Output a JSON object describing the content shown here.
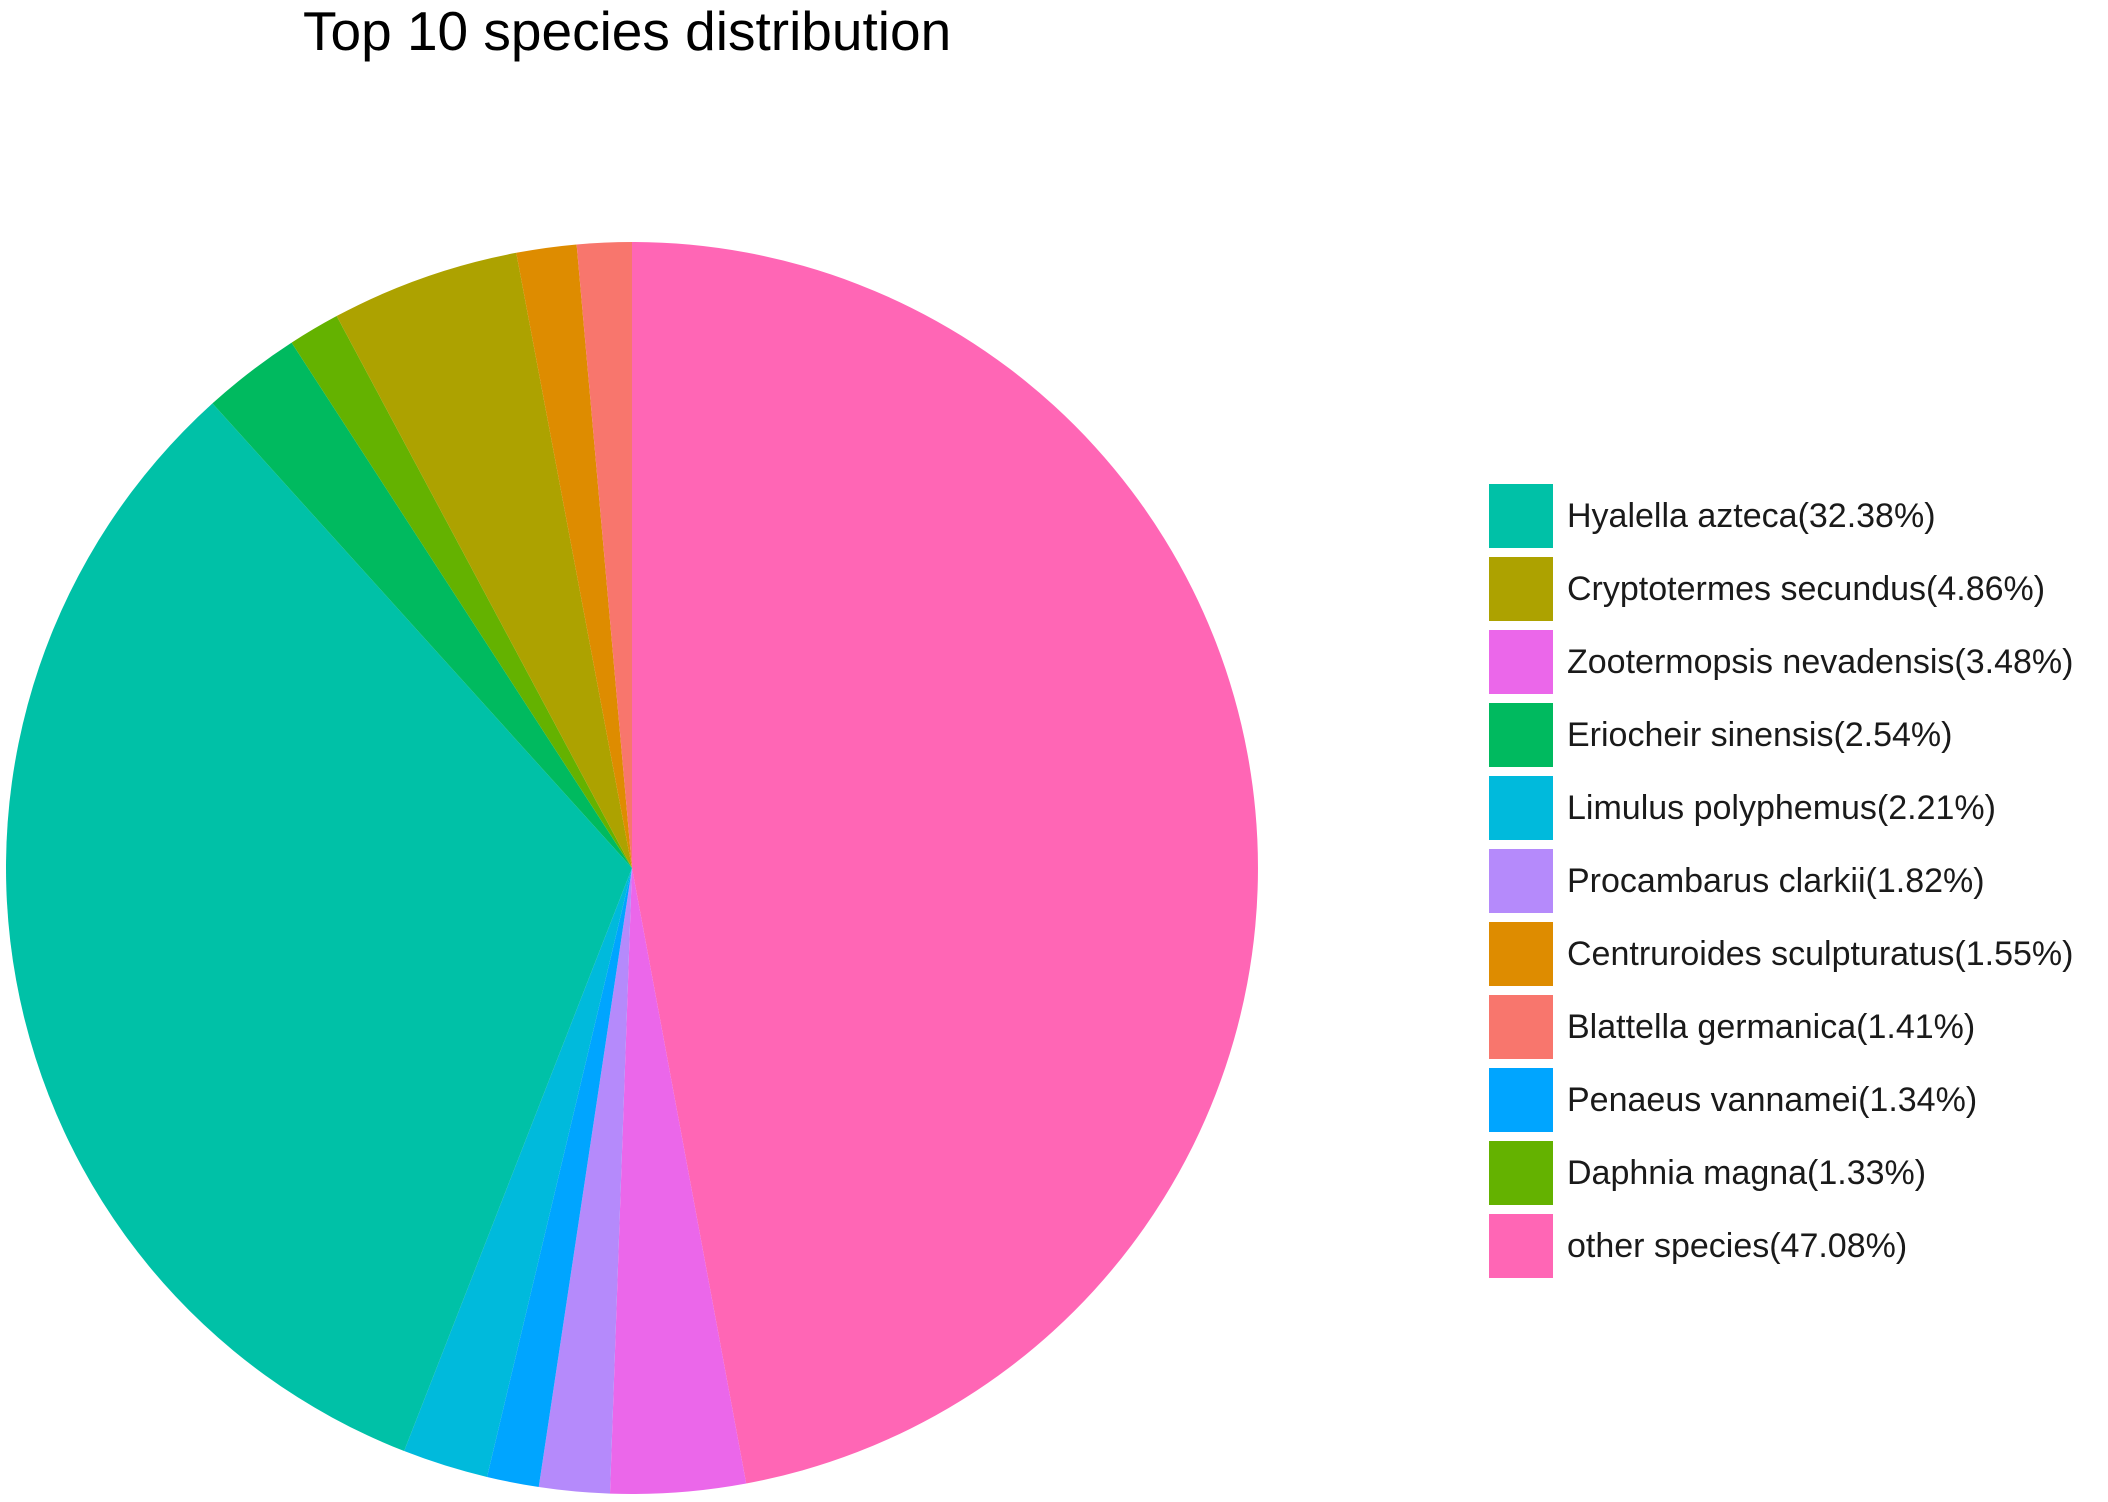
{
  "chart_data": {
    "type": "pie",
    "title": "Top 10 species distribution",
    "slices": [
      {
        "label": "Hyalella azteca(32.38%)",
        "value": 32.38,
        "color": "#00C1A7"
      },
      {
        "label": "Cryptotermes secundus(4.86%)",
        "value": 4.86,
        "color": "#ADA200"
      },
      {
        "label": "Zootermopsis nevadensis(3.48%)",
        "value": 3.48,
        "color": "#EB67EA"
      },
      {
        "label": "Eriocheir sinensis(2.54%)",
        "value": 2.54,
        "color": "#00BA5F"
      },
      {
        "label": "Limulus polyphemus(2.21%)",
        "value": 2.21,
        "color": "#00BADC"
      },
      {
        "label": "Procambarus clarkii(1.82%)",
        "value": 1.82,
        "color": "#B58AFB"
      },
      {
        "label": "Centruroides sculpturatus(1.55%)",
        "value": 1.55,
        "color": "#DE8C00"
      },
      {
        "label": "Blattella germanica(1.41%)",
        "value": 1.41,
        "color": "#F8766D"
      },
      {
        "label": "Penaeus vannamei(1.34%)",
        "value": 1.34,
        "color": "#00A5FF"
      },
      {
        "label": "Daphnia magna(1.33%)",
        "value": 1.33,
        "color": "#64B200"
      },
      {
        "label": "other species(47.08%)",
        "value": 47.08,
        "color": "#FF66B5"
      }
    ],
    "slice_order_clockwise_from_top": [
      "other species(47.08%)",
      "Zootermopsis nevadensis(3.48%)",
      "Procambarus clarkii(1.82%)",
      "Penaeus vannamei(1.34%)",
      "Limulus polyphemus(2.21%)",
      "Hyalella azteca(32.38%)",
      "Eriocheir sinensis(2.54%)",
      "Daphnia magna(1.33%)",
      "Cryptotermes secundus(4.86%)",
      "Centruroides sculpturatus(1.55%)",
      "Blattella germanica(1.41%)"
    ],
    "legend_position": "right"
  }
}
